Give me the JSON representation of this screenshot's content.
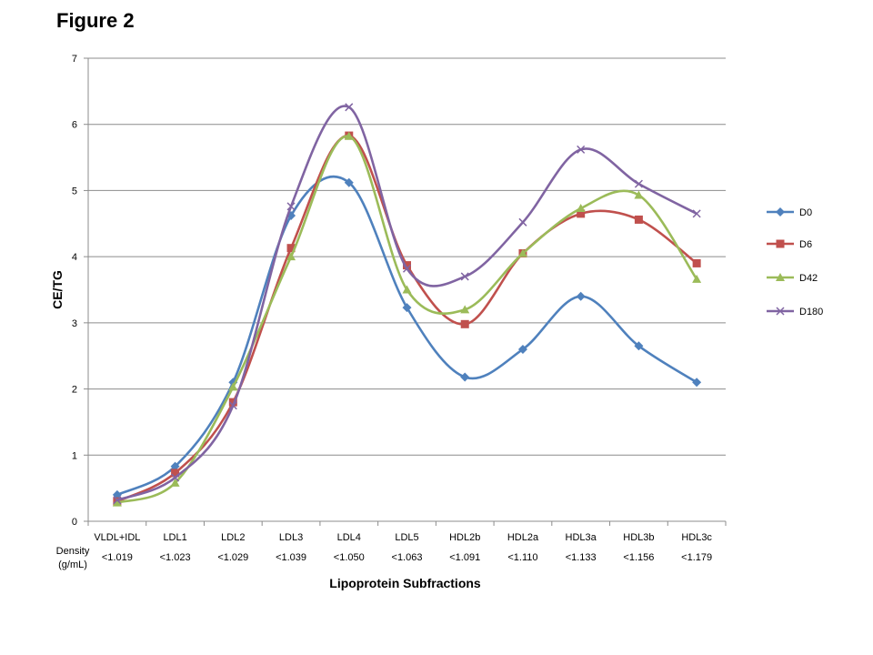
{
  "figure_title": "Figure 2",
  "chart_data": {
    "type": "line",
    "smooth": true,
    "categories": [
      "VLDL+IDL",
      "LDL1",
      "LDL2",
      "LDL3",
      "LDL4",
      "LDL5",
      "HDL2b",
      "HDL2a",
      "HDL3a",
      "HDL3b",
      "HDL3c"
    ],
    "density_label": [
      "Density",
      "(g/mL)"
    ],
    "density_values": [
      "<1.019",
      "<1.023",
      "<1.029",
      "<1.039",
      "<1.050",
      "<1.063",
      "<1.091",
      "<1.110",
      "<1.133",
      "<1.156",
      "<1.179"
    ],
    "xlabel": "Lipoprotein Subfractions",
    "ylabel": "CE/TG",
    "ylim": [
      0,
      7
    ],
    "yticks": [
      0,
      1,
      2,
      3,
      4,
      5,
      6,
      7
    ],
    "grid": "horizontal",
    "legend_position": "right",
    "series": [
      {
        "name": "D0",
        "color": "#4F81BD",
        "marker": "diamond",
        "values": [
          0.4,
          0.83,
          2.1,
          4.62,
          5.12,
          3.23,
          2.18,
          2.6,
          3.4,
          2.65,
          2.1
        ]
      },
      {
        "name": "D6",
        "color": "#C0504D",
        "marker": "square",
        "values": [
          0.3,
          0.73,
          1.8,
          4.13,
          5.83,
          3.87,
          2.98,
          4.05,
          4.65,
          4.56,
          3.9
        ]
      },
      {
        "name": "D42",
        "color": "#9BBB59",
        "marker": "triangle",
        "values": [
          0.28,
          0.58,
          2.03,
          4.0,
          5.82,
          3.5,
          3.2,
          4.05,
          4.73,
          4.93,
          3.66
        ]
      },
      {
        "name": "D180",
        "color": "#8064A2",
        "marker": "x",
        "values": [
          0.32,
          0.66,
          1.75,
          4.76,
          6.26,
          3.82,
          3.7,
          4.52,
          5.62,
          5.1,
          4.65
        ]
      }
    ]
  }
}
